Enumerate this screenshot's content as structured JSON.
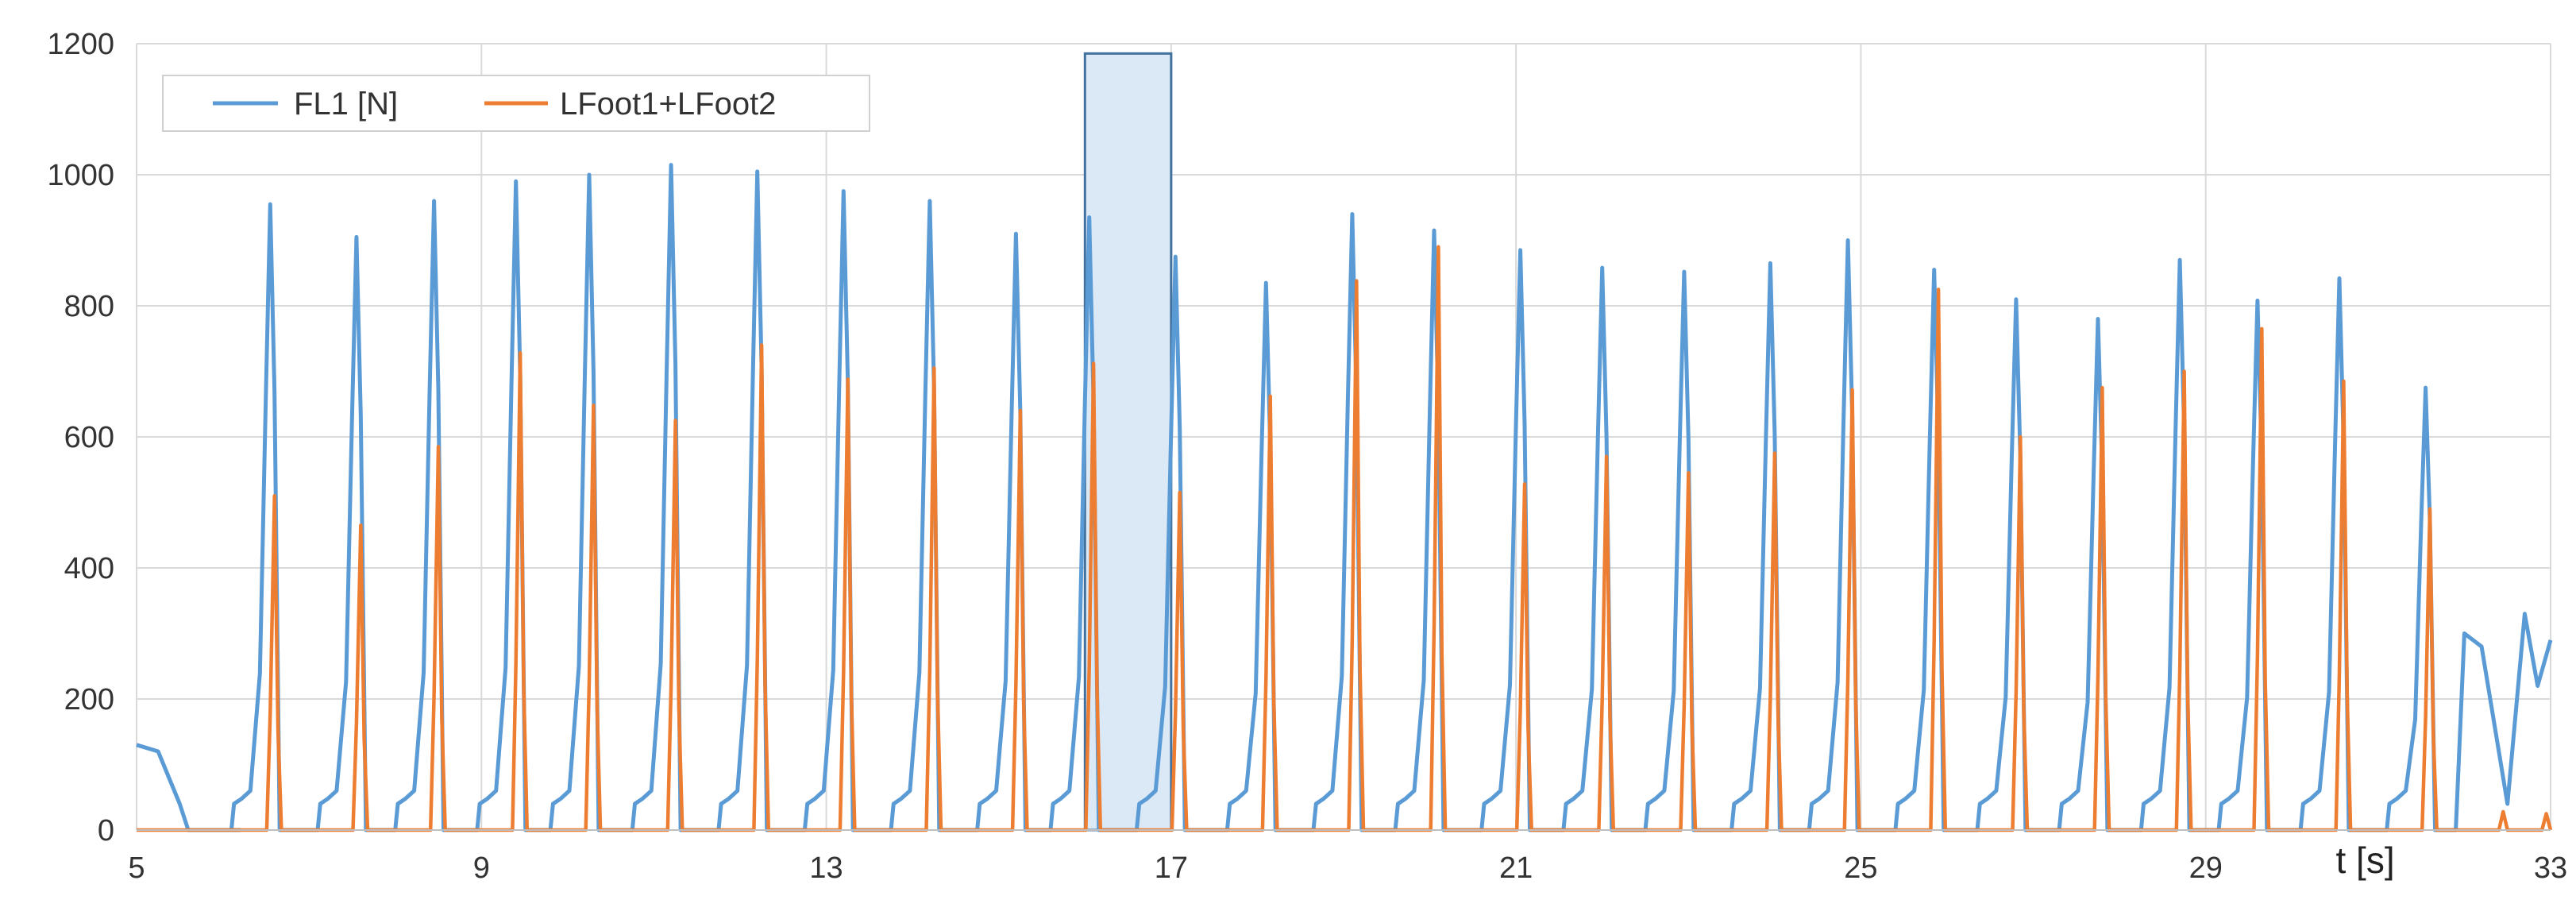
{
  "chart_data": {
    "type": "line",
    "title": "",
    "xlabel": "t [s]",
    "ylabel": "",
    "xlim": [
      5,
      33
    ],
    "ylim": [
      0,
      1200
    ],
    "x_ticks": [
      5,
      9,
      13,
      17,
      21,
      25,
      29,
      33
    ],
    "y_ticks": [
      0,
      200,
      400,
      600,
      800,
      1000,
      1200
    ],
    "grid": true,
    "legend": {
      "placement": "top-left",
      "entries": [
        "FL1 [N]",
        "LFoot1+LFoot2"
      ]
    },
    "highlight_region": {
      "x": [
        16.0,
        17.0
      ],
      "y": [
        0,
        1185
      ]
    },
    "series": [
      {
        "name": "FL1 [N]",
        "color": "#5b9bd5",
        "peaks": [
          {
            "t": 6.55,
            "v": 955
          },
          {
            "t": 7.55,
            "v": 905
          },
          {
            "t": 8.45,
            "v": 960
          },
          {
            "t": 9.4,
            "v": 990
          },
          {
            "t": 10.25,
            "v": 1000
          },
          {
            "t": 11.2,
            "v": 1015
          },
          {
            "t": 12.2,
            "v": 1005
          },
          {
            "t": 13.2,
            "v": 975
          },
          {
            "t": 14.2,
            "v": 960
          },
          {
            "t": 15.2,
            "v": 910
          },
          {
            "t": 16.05,
            "v": 935
          },
          {
            "t": 17.05,
            "v": 875
          },
          {
            "t": 18.1,
            "v": 835
          },
          {
            "t": 19.1,
            "v": 940
          },
          {
            "t": 20.05,
            "v": 915
          },
          {
            "t": 21.05,
            "v": 885
          },
          {
            "t": 22.0,
            "v": 858
          },
          {
            "t": 22.95,
            "v": 852
          },
          {
            "t": 23.95,
            "v": 865
          },
          {
            "t": 24.85,
            "v": 900
          },
          {
            "t": 25.85,
            "v": 855
          },
          {
            "t": 26.8,
            "v": 810
          },
          {
            "t": 27.75,
            "v": 780
          },
          {
            "t": 28.7,
            "v": 870
          },
          {
            "t": 29.6,
            "v": 808
          },
          {
            "t": 30.55,
            "v": 842
          },
          {
            "t": 31.55,
            "v": 675
          }
        ]
      },
      {
        "name": "LFoot1+LFoot2",
        "color": "#ed7d31",
        "peaks": [
          {
            "t": 6.6,
            "v": 510
          },
          {
            "t": 7.6,
            "v": 465
          },
          {
            "t": 8.5,
            "v": 585
          },
          {
            "t": 9.45,
            "v": 728
          },
          {
            "t": 10.3,
            "v": 648
          },
          {
            "t": 11.25,
            "v": 625
          },
          {
            "t": 12.25,
            "v": 740
          },
          {
            "t": 13.25,
            "v": 688
          },
          {
            "t": 14.25,
            "v": 705
          },
          {
            "t": 15.25,
            "v": 640
          },
          {
            "t": 16.1,
            "v": 712
          },
          {
            "t": 17.1,
            "v": 515
          },
          {
            "t": 18.15,
            "v": 662
          },
          {
            "t": 19.15,
            "v": 838
          },
          {
            "t": 20.1,
            "v": 890
          },
          {
            "t": 21.1,
            "v": 528
          },
          {
            "t": 22.05,
            "v": 570
          },
          {
            "t": 23.0,
            "v": 545
          },
          {
            "t": 24.0,
            "v": 575
          },
          {
            "t": 24.9,
            "v": 672
          },
          {
            "t": 25.9,
            "v": 825
          },
          {
            "t": 26.85,
            "v": 600
          },
          {
            "t": 27.8,
            "v": 675
          },
          {
            "t": 28.75,
            "v": 700
          },
          {
            "t": 29.65,
            "v": 765
          },
          {
            "t": 30.6,
            "v": 685
          },
          {
            "t": 31.6,
            "v": 490
          }
        ]
      }
    ]
  }
}
